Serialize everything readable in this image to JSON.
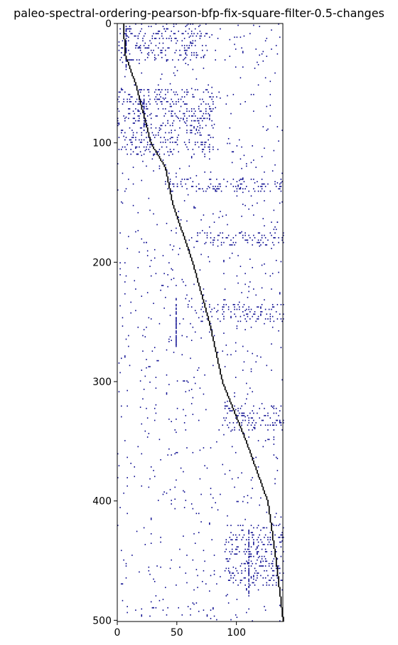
{
  "chart_data": {
    "type": "heatmap",
    "title": "paleo-spectral-ordering-pearson-bfp-fix-square-filter-0.5-changes",
    "xlabel": "",
    "ylabel": "",
    "xlim": [
      0,
      139
    ],
    "ylim": [
      501,
      0
    ],
    "x_ticks": [
      0,
      50,
      100
    ],
    "y_ticks": [
      0,
      100,
      200,
      300,
      400,
      500
    ],
    "grid": false,
    "legend": "none",
    "colors": {
      "cell": "#00008b",
      "diagonal": "#000000",
      "background": "#ffffff"
    },
    "diagonal_band": [
      [
        0,
        5
      ],
      [
        25,
        6
      ],
      [
        50,
        15
      ],
      [
        100,
        28
      ],
      [
        120,
        40
      ],
      [
        150,
        46
      ],
      [
        200,
        63
      ],
      [
        250,
        77
      ],
      [
        300,
        88
      ],
      [
        350,
        108
      ],
      [
        400,
        126
      ],
      [
        450,
        133
      ],
      [
        501,
        139
      ]
    ],
    "dense_row_bands": [
      {
        "rows": [
          0,
          30
        ],
        "cols": [
          0,
          75
        ]
      },
      {
        "rows": [
          55,
          110
        ],
        "cols": [
          0,
          80
        ]
      },
      {
        "rows": [
          130,
          140
        ],
        "cols": [
          40,
          139
        ]
      },
      {
        "rows": [
          175,
          185
        ],
        "cols": [
          60,
          139
        ]
      },
      {
        "rows": [
          235,
          250
        ],
        "cols": [
          70,
          139
        ]
      },
      {
        "rows": [
          320,
          340
        ],
        "cols": [
          90,
          139
        ]
      },
      {
        "rows": [
          420,
          470
        ],
        "cols": [
          90,
          139
        ]
      }
    ],
    "vertical_streaks": [
      {
        "col": 7,
        "rows": [
          0,
          40
        ]
      },
      {
        "col": 22,
        "rows": [
          60,
          90
        ]
      },
      {
        "col": 49,
        "rows": [
          230,
          270
        ]
      },
      {
        "col": 110,
        "rows": [
          420,
          480
        ]
      }
    ]
  }
}
